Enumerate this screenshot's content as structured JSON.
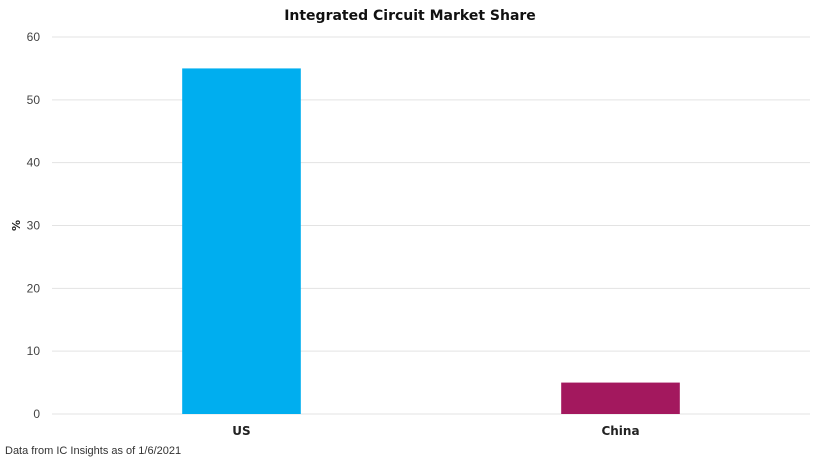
{
  "chart_data": {
    "type": "bar",
    "title": "Integrated Circuit Market Share",
    "categories": [
      "US",
      "China"
    ],
    "values": [
      55,
      5
    ],
    "colors": [
      "#00AEEF",
      "#A3185E"
    ],
    "xlabel": "",
    "ylabel": "%",
    "ylim": [
      0,
      60
    ],
    "yticks": [
      0,
      10,
      20,
      30,
      40,
      50,
      60
    ],
    "grid": true,
    "legend": "none"
  },
  "footer": {
    "source": "Data from IC Insights as of 1/6/2021"
  }
}
